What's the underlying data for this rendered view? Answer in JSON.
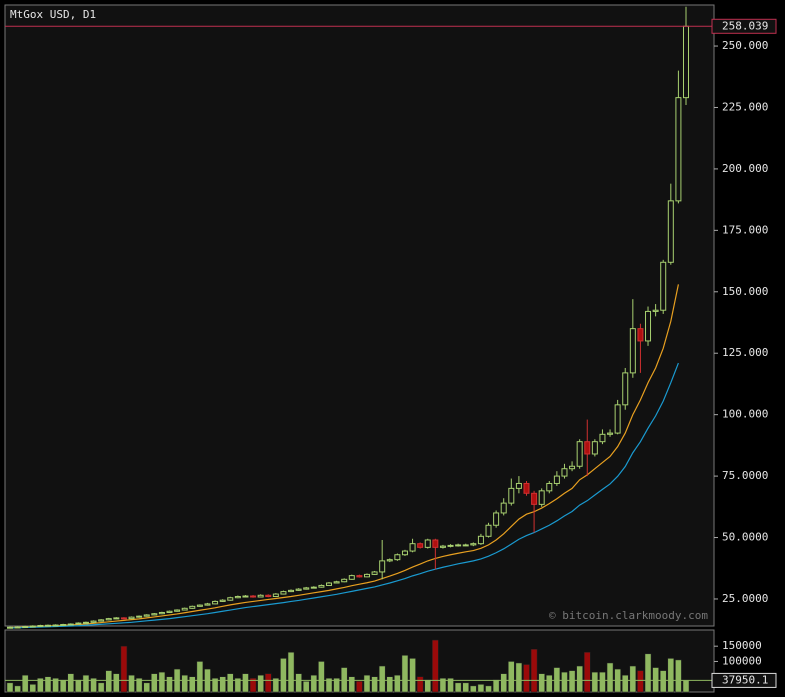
{
  "chart_data": [
    {
      "type": "candlestick",
      "title": "MtGox USD, D1",
      "annotation": "© bitcoin.clarkmoody.com",
      "up_color": "#a8d070",
      "down_color": "#b01010",
      "open": [
        13.3,
        13.5,
        13.6,
        13.8,
        14.0,
        14.2,
        14.3,
        14.4,
        14.6,
        14.8,
        15.2,
        15.5,
        16.0,
        16.5,
        17.0,
        17.3,
        17.0,
        17.6,
        18.0,
        18.5,
        19.0,
        19.5,
        20.0,
        20.5,
        21.2,
        22.0,
        22.5,
        23.0,
        24.0,
        24.5,
        25.5,
        26.0,
        26.2,
        25.8,
        26.5,
        26.0,
        27.0,
        28.0,
        28.5,
        29.0,
        29.5,
        29.8,
        30.5,
        31.5,
        32.0,
        33.0,
        34.5,
        34.0,
        35.0,
        36.0,
        40.5,
        41.0,
        43.0,
        44.5,
        47.5,
        46.0,
        49.0,
        46.0,
        46.5,
        46.8,
        47.0,
        47.0,
        47.5,
        50.5,
        55.0,
        60.0,
        64.0,
        70.0,
        72.0,
        68.0,
        63.5,
        69.0,
        72.0,
        75.0,
        78.0,
        79.0,
        89.0,
        84.0,
        89.0,
        92.0,
        92.5,
        104.0,
        117.0,
        135.0,
        130.0,
        142.0,
        142.5,
        162.0,
        187.0,
        229.0
      ],
      "high": [
        13.8,
        13.9,
        14.1,
        14.3,
        14.5,
        14.6,
        14.7,
        14.9,
        15.1,
        15.5,
        15.8,
        16.3,
        16.8,
        17.3,
        17.6,
        17.6,
        17.9,
        18.3,
        18.8,
        19.3,
        19.8,
        20.3,
        20.8,
        21.5,
        22.3,
        22.8,
        23.4,
        24.4,
        24.9,
        25.9,
        26.4,
        26.6,
        26.6,
        26.9,
        26.9,
        27.4,
        28.4,
        28.9,
        29.4,
        29.9,
        30.2,
        30.9,
        31.9,
        32.4,
        33.4,
        34.9,
        34.9,
        35.4,
        36.4,
        49.0,
        41.5,
        43.5,
        45.0,
        49.5,
        48.0,
        49.5,
        49.5,
        47.0,
        47.3,
        47.5,
        47.5,
        48.0,
        51.5,
        56.0,
        61.0,
        66.0,
        74.0,
        75.0,
        73.0,
        69.0,
        70.0,
        73.0,
        77.0,
        80.0,
        81.0,
        90.0,
        98.0,
        90.0,
        94.0,
        94.0,
        106.0,
        119.0,
        147.0,
        137.0,
        144.0,
        145.0,
        163.0,
        194.0,
        240.0,
        266.0
      ],
      "low": [
        13.1,
        13.3,
        13.4,
        13.6,
        13.8,
        14.0,
        14.1,
        14.2,
        14.4,
        14.6,
        15.0,
        15.3,
        15.8,
        16.3,
        16.8,
        16.7,
        16.8,
        17.4,
        17.8,
        18.3,
        18.8,
        19.3,
        19.8,
        20.3,
        21.0,
        21.8,
        22.3,
        22.8,
        23.8,
        24.3,
        25.3,
        25.8,
        25.5,
        25.6,
        25.7,
        25.8,
        26.8,
        27.8,
        28.3,
        28.8,
        29.3,
        29.6,
        30.3,
        31.3,
        31.8,
        32.8,
        33.7,
        33.8,
        34.8,
        33.0,
        40.0,
        40.5,
        42.5,
        44.0,
        45.5,
        45.5,
        37.0,
        45.5,
        46.0,
        46.3,
        46.5,
        46.5,
        47.0,
        50.0,
        54.0,
        59.0,
        63.0,
        68.0,
        67.0,
        52.0,
        62.5,
        68.0,
        71.0,
        74.0,
        77.0,
        78.0,
        75.0,
        83.0,
        88.0,
        91.0,
        92.0,
        102.0,
        115.0,
        117.0,
        128.0,
        140.0,
        141.0,
        161.0,
        186.0,
        226.0
      ],
      "close": [
        13.5,
        13.6,
        13.8,
        14.0,
        14.2,
        14.3,
        14.4,
        14.6,
        14.8,
        15.2,
        15.5,
        16.0,
        16.5,
        17.0,
        17.3,
        17.0,
        17.6,
        18.0,
        18.5,
        19.0,
        19.5,
        20.0,
        20.5,
        21.2,
        22.0,
        22.5,
        23.0,
        24.0,
        24.5,
        25.5,
        26.0,
        26.2,
        25.8,
        26.5,
        26.0,
        27.0,
        28.0,
        28.5,
        29.0,
        29.5,
        29.8,
        30.5,
        31.5,
        32.0,
        33.0,
        34.5,
        34.0,
        35.0,
        36.0,
        40.5,
        41.0,
        43.0,
        44.5,
        47.5,
        46.0,
        49.0,
        46.0,
        46.5,
        46.8,
        47.0,
        47.0,
        47.5,
        50.5,
        55.0,
        60.0,
        64.0,
        70.0,
        72.0,
        68.0,
        63.5,
        69.0,
        72.0,
        75.0,
        78.0,
        79.0,
        89.0,
        84.0,
        89.0,
        92.0,
        92.5,
        104.0,
        117.0,
        135.0,
        130.0,
        142.0,
        142.5,
        162.0,
        187.0,
        229.0,
        258.039
      ],
      "series": [
        {
          "color": "#e8a020",
          "values": [
            13.4,
            13.5,
            13.6,
            13.7,
            13.9,
            14.0,
            14.1,
            14.3,
            14.4,
            14.6,
            14.8,
            15.1,
            15.4,
            15.7,
            16.0,
            16.3,
            16.6,
            16.9,
            17.3,
            17.7,
            18.1,
            18.5,
            18.9,
            19.4,
            19.9,
            20.4,
            20.9,
            21.4,
            22.0,
            22.6,
            23.1,
            23.6,
            24.0,
            24.4,
            24.8,
            25.2,
            25.6,
            26.0,
            26.5,
            27.0,
            27.5,
            28.0,
            28.5,
            29.1,
            29.7,
            30.4,
            31.0,
            31.6,
            32.3,
            33.3,
            34.3,
            35.4,
            36.6,
            38.0,
            39.2,
            40.5,
            41.5,
            42.3,
            43.0,
            43.6,
            44.2,
            44.7,
            45.6,
            47.0,
            49.0,
            51.5,
            54.5,
            57.5,
            59.5,
            60.5,
            62.0,
            63.8,
            65.8,
            68.0,
            70.0,
            73.5,
            75.5,
            78.0,
            80.5,
            83.0,
            87.0,
            92.5,
            100.0,
            106.0,
            113.0,
            119.0,
            127.0,
            138.0,
            153.0,
            null
          ]
        },
        {
          "color": "#1a9ad0",
          "values": [
            13.2,
            13.3,
            13.4,
            13.5,
            13.6,
            13.7,
            13.8,
            13.9,
            14.0,
            14.1,
            14.3,
            14.5,
            14.7,
            14.9,
            15.1,
            15.3,
            15.5,
            15.8,
            16.1,
            16.4,
            16.7,
            17.0,
            17.4,
            17.8,
            18.2,
            18.6,
            19.0,
            19.5,
            20.0,
            20.5,
            21.0,
            21.5,
            21.9,
            22.3,
            22.7,
            23.1,
            23.5,
            24.0,
            24.4,
            24.9,
            25.4,
            25.9,
            26.4,
            26.9,
            27.5,
            28.1,
            28.7,
            29.3,
            29.9,
            30.7,
            31.5,
            32.4,
            33.3,
            34.4,
            35.3,
            36.3,
            37.1,
            37.9,
            38.6,
            39.3,
            39.9,
            40.5,
            41.3,
            42.4,
            43.8,
            45.4,
            47.3,
            49.3,
            50.8,
            52.0,
            53.5,
            55.0,
            56.8,
            58.8,
            60.6,
            63.2,
            65.0,
            67.3,
            69.6,
            71.8,
            74.9,
            78.9,
            84.5,
            89.0,
            94.5,
            99.5,
            105.5,
            113.0,
            121.0,
            null
          ]
        }
      ],
      "ylim": [
        14.0,
        266.7
      ],
      "yticks": [
        {
          "value": 25,
          "label": "25.0000"
        },
        {
          "value": 50,
          "label": "50.0000"
        },
        {
          "value": 75,
          "label": "75.0000"
        },
        {
          "value": 100,
          "label": "100.000"
        },
        {
          "value": 125,
          "label": "125.000"
        },
        {
          "value": 150,
          "label": "150.000"
        },
        {
          "value": 175,
          "label": "175.000"
        },
        {
          "value": 200,
          "label": "200.000"
        },
        {
          "value": 225,
          "label": "225.000"
        },
        {
          "value": 250,
          "label": "250.000"
        }
      ]
    },
    {
      "type": "bar",
      "up_color": "#8fb860",
      "down_color": "#9a0a0a",
      "values": [
        30000,
        20000,
        55000,
        25000,
        45000,
        50000,
        45000,
        40000,
        60000,
        40000,
        55000,
        45000,
        30000,
        70000,
        60000,
        150000,
        55000,
        45000,
        30000,
        60000,
        65000,
        50000,
        75000,
        55000,
        50000,
        100000,
        75000,
        45000,
        50000,
        60000,
        45000,
        60000,
        45000,
        55000,
        60000,
        45000,
        110000,
        130000,
        60000,
        35000,
        55000,
        100000,
        45000,
        45000,
        80000,
        50000,
        35000,
        55000,
        50000,
        85000,
        50000,
        55000,
        120000,
        110000,
        50000,
        40000,
        170000,
        45000,
        45000,
        30000,
        30000,
        20000,
        25000,
        20000,
        40000,
        60000,
        100000,
        95000,
        90000,
        140000,
        60000,
        55000,
        80000,
        65000,
        70000,
        85000,
        130000,
        65000,
        65000,
        95000,
        75000,
        55000,
        85000,
        70000,
        125000,
        80000,
        70000,
        110000,
        105000,
        37950.1
      ],
      "ylim": [
        0,
        203000
      ],
      "yticks": [
        100000,
        150000
      ]
    }
  ]
}
